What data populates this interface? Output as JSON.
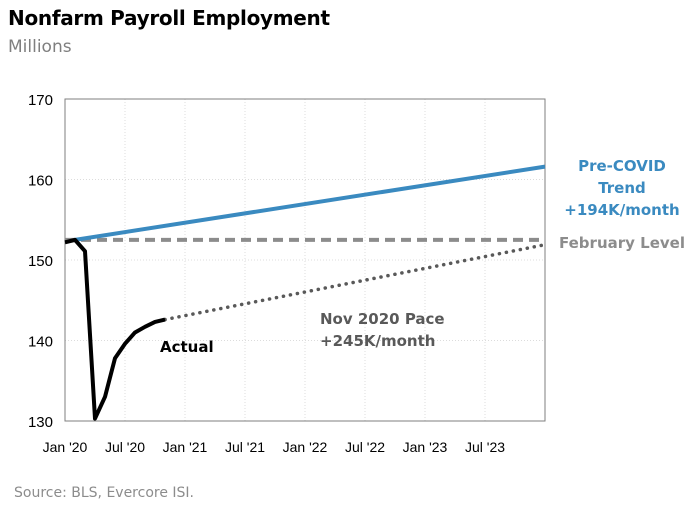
{
  "chart_data": {
    "type": "line",
    "title": "Nonfarm Payroll Employment",
    "subtitle": "Millions",
    "source": "Source: BLS, Evercore ISI.",
    "ylim": [
      130,
      170
    ],
    "yticks": [
      130,
      140,
      150,
      160,
      170
    ],
    "xlim_months_from_jan2020": [
      0,
      48
    ],
    "xticks": [
      {
        "m": 0,
        "label": "Jan '20"
      },
      {
        "m": 6,
        "label": "Jul '20"
      },
      {
        "m": 12,
        "label": "Jan '21"
      },
      {
        "m": 18,
        "label": "Jul '21"
      },
      {
        "m": 24,
        "label": "Jan '22"
      },
      {
        "m": 30,
        "label": "Jul '22"
      },
      {
        "m": 36,
        "label": "Jan '23"
      },
      {
        "m": 42,
        "label": "Jul '23"
      }
    ],
    "grid": true,
    "series": [
      {
        "name": "Actual",
        "label": "Actual",
        "color": "#000000",
        "style": "solid",
        "x": [
          0,
          1,
          2,
          3,
          4,
          5,
          6,
          7,
          8,
          9,
          10
        ],
        "values": [
          152.2,
          152.5,
          151.1,
          130.3,
          133.0,
          137.8,
          139.6,
          141.0,
          141.7,
          142.3,
          142.6
        ]
      },
      {
        "name": "Pre-COVID Trend",
        "label": [
          "Pre-COVID",
          "Trend",
          "+194K/month"
        ],
        "color": "#3a8ac0",
        "style": "solid",
        "x": [
          1,
          48
        ],
        "values": [
          152.5,
          161.6
        ]
      },
      {
        "name": "February Level",
        "label": [
          "February Level"
        ],
        "color": "#8c8c8c",
        "style": "dashed",
        "x": [
          0,
          48
        ],
        "values": [
          152.5,
          152.5
        ]
      },
      {
        "name": "Nov 2020 Pace",
        "label": [
          "Nov 2020 Pace",
          "+245K/month"
        ],
        "color": "#595959",
        "style": "dotted",
        "x": [
          10,
          48
        ],
        "values": [
          142.6,
          151.9
        ]
      }
    ]
  }
}
